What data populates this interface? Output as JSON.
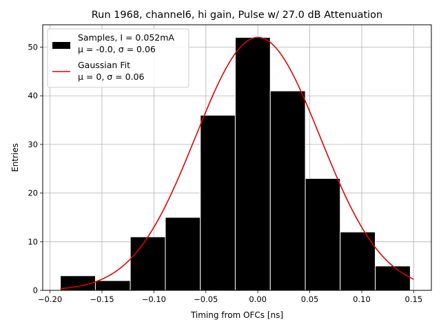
{
  "chart_data": {
    "type": "bar",
    "title": "Run 1968, channel6, hi gain, Pulse w/ 27.0 dB Attenuation",
    "xlabel": "Timing from OFCs [ns]",
    "ylabel": "Entries",
    "xlim": [
      -0.207,
      0.167
    ],
    "ylim": [
      0,
      54.6
    ],
    "grid": true,
    "legend_position": "top-left",
    "x_ticks": [
      -0.2,
      -0.15,
      -0.1,
      -0.05,
      0.0,
      0.05,
      0.1,
      0.15
    ],
    "x_tick_labels": [
      "−0.20",
      "−0.15",
      "−0.10",
      "−0.05",
      "0.00",
      "0.05",
      "0.10",
      "0.15"
    ],
    "y_ticks": [
      0,
      10,
      20,
      30,
      40,
      50
    ],
    "y_tick_labels": [
      "0",
      "10",
      "20",
      "30",
      "40",
      "50"
    ],
    "bins": [
      {
        "x0": -0.19,
        "x1": -0.1563,
        "count": 3
      },
      {
        "x0": -0.1563,
        "x1": -0.1227,
        "count": 2
      },
      {
        "x0": -0.1227,
        "x1": -0.089,
        "count": 11
      },
      {
        "x0": -0.089,
        "x1": -0.0553,
        "count": 15
      },
      {
        "x0": -0.0553,
        "x1": -0.0217,
        "count": 36
      },
      {
        "x0": -0.0217,
        "x1": 0.012,
        "count": 52
      },
      {
        "x0": 0.012,
        "x1": 0.0457,
        "count": 41
      },
      {
        "x0": 0.0457,
        "x1": 0.0793,
        "count": 23
      },
      {
        "x0": 0.0793,
        "x1": 0.113,
        "count": 12
      },
      {
        "x0": 0.113,
        "x1": 0.1467,
        "count": 5
      }
    ],
    "fit": {
      "mu": 0.0,
      "sigma": 0.06,
      "amplitude": 52.0,
      "x_range": [
        -0.19,
        0.15
      ],
      "color": "#e00000"
    },
    "bar_color": "#000000",
    "bar_edge_color": "#ffffff",
    "legend": [
      {
        "line1": "Samples, I = 0.052mA",
        "line2": "μ = -0.0, σ = 0.06",
        "kind": "patch"
      },
      {
        "line1": "Gaussian Fit",
        "line2": "μ = 0, σ = 0.06",
        "kind": "line"
      }
    ]
  }
}
